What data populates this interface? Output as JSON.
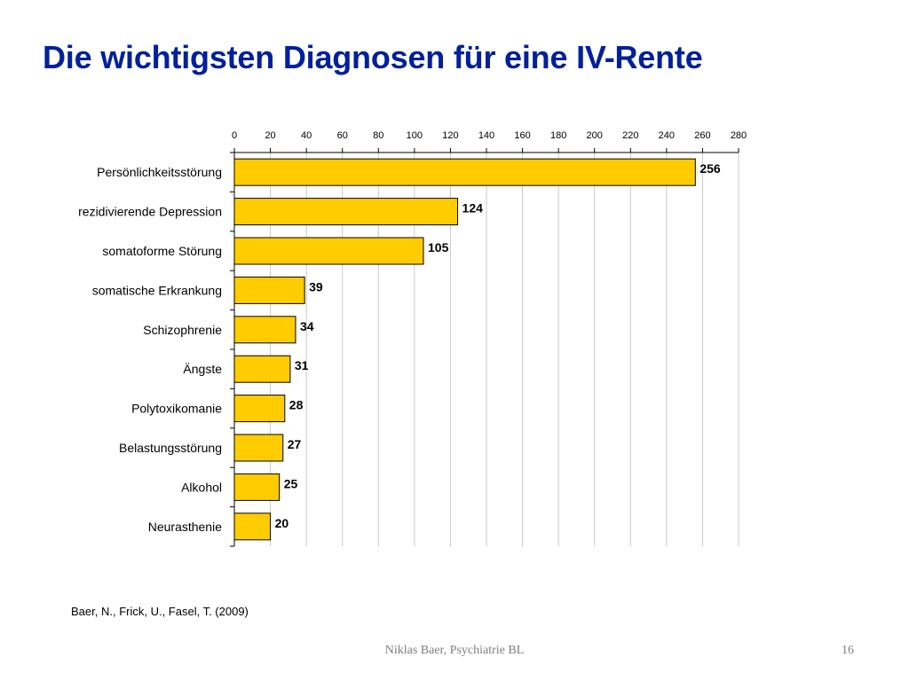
{
  "slide": {
    "title": "Die wichtigsten Diagnosen für eine IV-Rente",
    "citation": "Baer, N., Frick, U., Fasel, T. (2009)",
    "footer_author": "Niklas Baer, Psychiatrie BL",
    "page_number": "16"
  },
  "colors": {
    "title": "#00209c",
    "bar_fill": "#ffcc00",
    "bar_stroke": "#000000",
    "gridline": "#c8c8c8",
    "footer": "#7f7f7f"
  },
  "chart_data": {
    "type": "bar",
    "orientation": "horizontal",
    "categories": [
      "Persönlichkeitsstörung",
      "rezidivierende Depression",
      "somatoforme Störung",
      "somatische Erkrankung",
      "Schizophrenie",
      "Ängste",
      "Polytoxikomanie",
      "Belastungsstörung",
      "Alkohol",
      "Neurasthenie"
    ],
    "values": [
      256,
      124,
      105,
      39,
      34,
      31,
      28,
      27,
      25,
      20
    ],
    "data_labels": [
      "256",
      "124",
      "105",
      "39",
      "34",
      "31",
      "28",
      "27",
      "25",
      "20"
    ],
    "xlim": [
      0,
      280
    ],
    "x_ticks": [
      0,
      20,
      40,
      60,
      80,
      100,
      120,
      140,
      160,
      180,
      200,
      220,
      240,
      260,
      280
    ],
    "x_tick_labels": [
      "0",
      "20",
      "40",
      "60",
      "80",
      "100",
      "120",
      "140",
      "160",
      "180",
      "200",
      "220",
      "240",
      "260",
      "280"
    ],
    "x_axis_position": "top",
    "grid": true,
    "legend": "none"
  }
}
